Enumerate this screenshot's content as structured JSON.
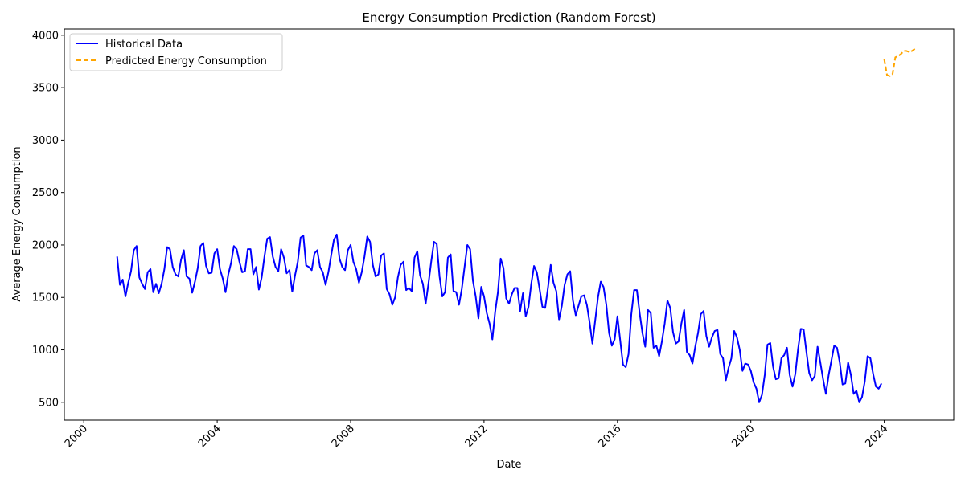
{
  "chart_data": {
    "type": "line",
    "title": "Energy Consumption Prediction (Random Forest)",
    "xlabel": "Date",
    "ylabel": "Average Energy Consumption",
    "x_ticks": [
      "2000",
      "2004",
      "2008",
      "2012",
      "2016",
      "2020",
      "2024"
    ],
    "y_ticks": [
      500,
      1000,
      1500,
      2000,
      2500,
      3000,
      3500,
      4000
    ],
    "xlim": [
      "1999-06",
      "2026-02"
    ],
    "ylim": [
      330,
      4060
    ],
    "grid": false,
    "legend_position": "top-left",
    "series": [
      {
        "name": "Historical Data",
        "color": "#0000ff",
        "style": "solid",
        "start": "2001-01",
        "frequency": "monthly",
        "values": [
          1890,
          1620,
          1670,
          1510,
          1640,
          1750,
          1950,
          1990,
          1690,
          1630,
          1580,
          1740,
          1770,
          1550,
          1630,
          1540,
          1630,
          1770,
          1980,
          1960,
          1790,
          1720,
          1700,
          1860,
          1950,
          1700,
          1680,
          1545,
          1650,
          1780,
          1990,
          2020,
          1800,
          1730,
          1735,
          1920,
          1960,
          1770,
          1680,
          1550,
          1720,
          1830,
          1990,
          1960,
          1840,
          1740,
          1750,
          1960,
          1960,
          1720,
          1790,
          1575,
          1690,
          1890,
          2060,
          2075,
          1890,
          1790,
          1750,
          1960,
          1880,
          1730,
          1760,
          1555,
          1710,
          1840,
          2070,
          2090,
          1805,
          1790,
          1760,
          1920,
          1950,
          1790,
          1740,
          1620,
          1740,
          1900,
          2050,
          2100,
          1870,
          1790,
          1760,
          1950,
          2000,
          1840,
          1770,
          1640,
          1740,
          1890,
          2080,
          2030,
          1810,
          1700,
          1720,
          1900,
          1920,
          1580,
          1530,
          1430,
          1500,
          1690,
          1810,
          1840,
          1570,
          1590,
          1560,
          1880,
          1940,
          1710,
          1630,
          1440,
          1630,
          1840,
          2030,
          2010,
          1700,
          1510,
          1550,
          1880,
          1910,
          1560,
          1550,
          1430,
          1580,
          1790,
          2000,
          1960,
          1660,
          1510,
          1300,
          1600,
          1510,
          1350,
          1250,
          1100,
          1360,
          1550,
          1870,
          1780,
          1490,
          1440,
          1530,
          1590,
          1590,
          1370,
          1540,
          1320,
          1410,
          1630,
          1800,
          1740,
          1580,
          1410,
          1400,
          1590,
          1810,
          1640,
          1560,
          1290,
          1420,
          1620,
          1720,
          1750,
          1470,
          1330,
          1420,
          1510,
          1520,
          1430,
          1260,
          1060,
          1280,
          1500,
          1650,
          1600,
          1430,
          1160,
          1040,
          1100,
          1320,
          1090,
          860,
          835,
          960,
          1340,
          1570,
          1570,
          1350,
          1160,
          1030,
          1380,
          1350,
          1020,
          1040,
          940,
          1080,
          1250,
          1470,
          1400,
          1170,
          1060,
          1080,
          1250,
          1380,
          980,
          950,
          870,
          1030,
          1160,
          1340,
          1370,
          1130,
          1030,
          1120,
          1180,
          1190,
          960,
          920,
          710,
          830,
          920,
          1180,
          1120,
          1000,
          800,
          870,
          860,
          800,
          690,
          630,
          500,
          570,
          760,
          1050,
          1065,
          840,
          720,
          730,
          920,
          950,
          1020,
          760,
          650,
          770,
          1010,
          1200,
          1195,
          980,
          780,
          710,
          750,
          1030,
          880,
          720,
          580,
          760,
          900,
          1040,
          1020,
          880,
          670,
          680,
          880,
          760,
          580,
          610,
          500,
          550,
          700,
          940,
          920,
          770,
          650,
          630,
          680
        ]
      },
      {
        "name": "Predicted Energy Consumption",
        "color": "#ffa500",
        "style": "dashed",
        "start": "2024-01",
        "frequency": "monthly",
        "values": [
          3770,
          3620,
          3610,
          3630,
          3790,
          3800,
          3820,
          3850,
          3850,
          3840,
          3850,
          3870
        ]
      }
    ]
  }
}
